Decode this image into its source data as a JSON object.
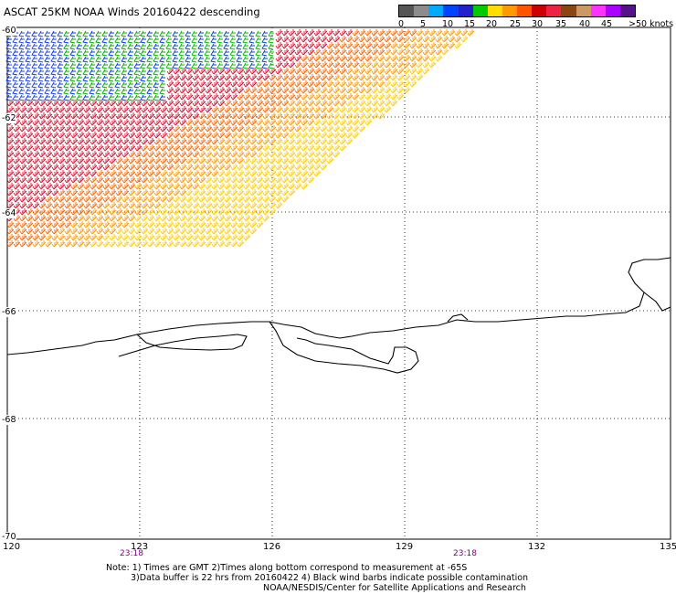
{
  "title": "ASCAT 25KM NOAA Winds 20160422 descending",
  "colorbar": {
    "colors": [
      "#555555",
      "#8c8c8c",
      "#00aaff",
      "#0044ff",
      "#2222cc",
      "#00cc00",
      "#ffdd00",
      "#ff9900",
      "#ff5500",
      "#cc0000",
      "#ee2244",
      "#8b4513",
      "#cc9966",
      "#ff33ff",
      "#aa00ff",
      "#551188"
    ],
    "labels": [
      "0",
      "5",
      "10",
      "15",
      "20",
      "25",
      "30",
      "35",
      "40",
      "45",
      ">50 knots"
    ]
  },
  "lat_labels": [
    "-60",
    "-62",
    "-64",
    "-66",
    "-68",
    "-70"
  ],
  "lon_labels": [
    "120",
    "123",
    "126",
    "129",
    "132",
    "135"
  ],
  "time_labels": [
    "23:18",
    "23:18"
  ],
  "notes": [
    "Note: 1) Times are GMT 2)Times along bottom correspond to measurement at -65S",
    "3)Data buffer is 22 hrs from 20160422 4) Black wind barbs indicate possible contamination",
    "NOAA/NESDIS/Center for Satellite Applications and Research"
  ],
  "time_color": "#800080"
}
